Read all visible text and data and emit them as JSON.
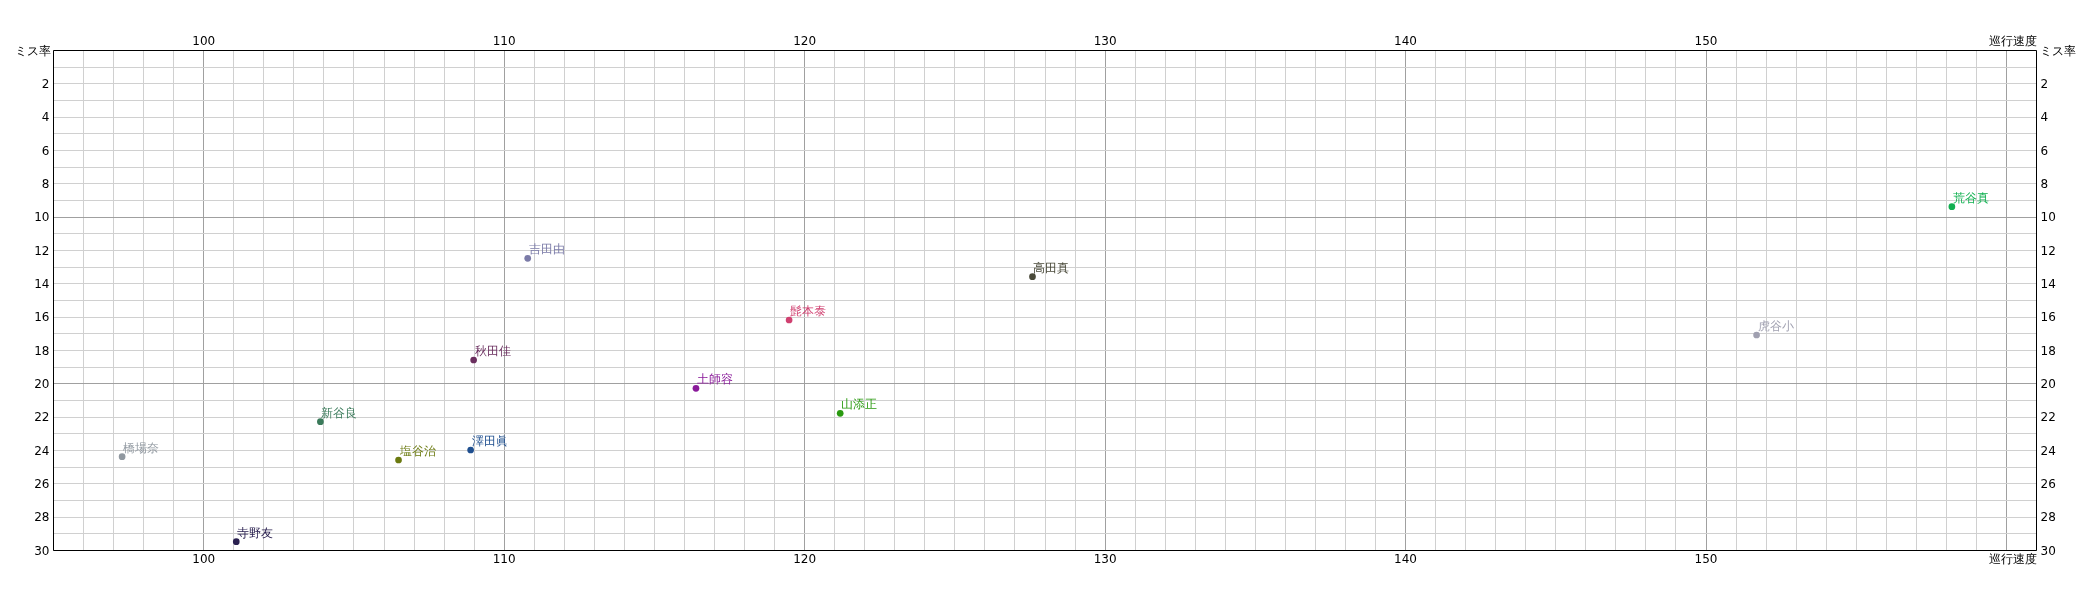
{
  "chart_data": {
    "type": "scatter",
    "xlabel": "巡行速度",
    "x2label": "巡行速度",
    "ylabel": "ミス率",
    "y2label": "ミス率",
    "xlim": [
      95,
      161
    ],
    "x2lim": [
      95,
      161
    ],
    "ylim": [
      30,
      0
    ],
    "y2lim": [
      30,
      0
    ],
    "xticks": [
      {
        "value": 96,
        "label": null
      },
      {
        "value": 97,
        "label": null
      },
      {
        "value": 98,
        "label": null
      },
      {
        "value": 99,
        "label": null
      },
      100,
      {
        "value": 101,
        "label": null
      },
      {
        "value": 102,
        "label": null
      },
      {
        "value": 103,
        "label": null
      },
      {
        "value": 104,
        "label": null
      },
      {
        "value": 105,
        "label": null
      },
      {
        "value": 106,
        "label": null
      },
      {
        "value": 107,
        "label": null
      },
      {
        "value": 108,
        "label": null
      },
      {
        "value": 109,
        "label": null
      },
      110,
      {
        "value": 111,
        "label": null
      },
      {
        "value": 112,
        "label": null
      },
      {
        "value": 113,
        "label": null
      },
      {
        "value": 114,
        "label": null
      },
      {
        "value": 115,
        "label": null
      },
      {
        "value": 116,
        "label": null
      },
      {
        "value": 117,
        "label": null
      },
      {
        "value": 118,
        "label": null
      },
      {
        "value": 119,
        "label": null
      },
      120,
      {
        "value": 121,
        "label": null
      },
      {
        "value": 122,
        "label": null
      },
      {
        "value": 123,
        "label": null
      },
      {
        "value": 124,
        "label": null
      },
      {
        "value": 125,
        "label": null
      },
      {
        "value": 126,
        "label": null
      },
      {
        "value": 127,
        "label": null
      },
      {
        "value": 128,
        "label": null
      },
      {
        "value": 129,
        "label": null
      },
      130,
      {
        "value": 131,
        "label": null
      },
      {
        "value": 132,
        "label": null
      },
      {
        "value": 133,
        "label": null
      },
      {
        "value": 134,
        "label": null
      },
      {
        "value": 135,
        "label": null
      },
      {
        "value": 136,
        "label": null
      },
      {
        "value": 137,
        "label": null
      },
      {
        "value": 138,
        "label": null
      },
      {
        "value": 139,
        "label": null
      },
      140,
      {
        "value": 141,
        "label": null
      },
      {
        "value": 142,
        "label": null
      },
      {
        "value": 143,
        "label": null
      },
      {
        "value": 144,
        "label": null
      },
      {
        "value": 145,
        "label": null
      },
      {
        "value": 146,
        "label": null
      },
      {
        "value": 147,
        "label": null
      },
      {
        "value": 148,
        "label": null
      },
      {
        "value": 149,
        "label": null
      },
      150,
      {
        "value": 151,
        "label": null
      },
      {
        "value": 152,
        "label": null
      },
      {
        "value": 153,
        "label": null
      },
      {
        "value": 154,
        "label": null
      },
      {
        "value": 155,
        "label": null
      },
      {
        "value": 156,
        "label": null
      },
      {
        "value": 157,
        "label": null
      },
      {
        "value": 158,
        "label": null
      },
      {
        "value": 159,
        "label": null
      },
      {
        "value": 160,
        "label": null
      }
    ],
    "x2ticks": [
      {
        "value": 96,
        "label": null
      },
      {
        "value": 97,
        "label": null
      },
      {
        "value": 98,
        "label": null
      },
      {
        "value": 99,
        "label": null
      },
      100,
      {
        "value": 101,
        "label": null
      },
      {
        "value": 102,
        "label": null
      },
      {
        "value": 103,
        "label": null
      },
      {
        "value": 104,
        "label": null
      },
      {
        "value": 105,
        "label": null
      },
      {
        "value": 106,
        "label": null
      },
      {
        "value": 107,
        "label": null
      },
      {
        "value": 108,
        "label": null
      },
      {
        "value": 109,
        "label": null
      },
      110,
      {
        "value": 111,
        "label": null
      },
      {
        "value": 112,
        "label": null
      },
      {
        "value": 113,
        "label": null
      },
      {
        "value": 114,
        "label": null
      },
      {
        "value": 115,
        "label": null
      },
      {
        "value": 116,
        "label": null
      },
      {
        "value": 117,
        "label": null
      },
      {
        "value": 118,
        "label": null
      },
      {
        "value": 119,
        "label": null
      },
      120,
      {
        "value": 121,
        "label": null
      },
      {
        "value": 122,
        "label": null
      },
      {
        "value": 123,
        "label": null
      },
      {
        "value": 124,
        "label": null
      },
      {
        "value": 125,
        "label": null
      },
      {
        "value": 126,
        "label": null
      },
      {
        "value": 127,
        "label": null
      },
      {
        "value": 128,
        "label": null
      },
      {
        "value": 129,
        "label": null
      },
      130,
      {
        "value": 131,
        "label": null
      },
      {
        "value": 132,
        "label": null
      },
      {
        "value": 133,
        "label": null
      },
      {
        "value": 134,
        "label": null
      },
      {
        "value": 135,
        "label": null
      },
      {
        "value": 136,
        "label": null
      },
      {
        "value": 137,
        "label": null
      },
      {
        "value": 138,
        "label": null
      },
      {
        "value": 139,
        "label": null
      },
      140,
      {
        "value": 141,
        "label": null
      },
      {
        "value": 142,
        "label": null
      },
      {
        "value": 143,
        "label": null
      },
      {
        "value": 144,
        "label": null
      },
      {
        "value": 145,
        "label": null
      },
      {
        "value": 146,
        "label": null
      },
      {
        "value": 147,
        "label": null
      },
      {
        "value": 148,
        "label": null
      },
      {
        "value": 149,
        "label": null
      },
      150,
      {
        "value": 151,
        "label": null
      },
      {
        "value": 152,
        "label": null
      },
      {
        "value": 153,
        "label": null
      },
      {
        "value": 154,
        "label": null
      },
      {
        "value": 155,
        "label": null
      },
      {
        "value": 156,
        "label": null
      },
      {
        "value": 157,
        "label": null
      },
      {
        "value": 158,
        "label": null
      },
      {
        "value": 159,
        "label": null
      },
      {
        "value": 160,
        "label": null
      }
    ],
    "yticks": [
      {
        "value": 1,
        "label": null
      },
      2,
      {
        "value": 3,
        "label": null
      },
      4,
      {
        "value": 5,
        "label": null
      },
      6,
      {
        "value": 7,
        "label": null
      },
      8,
      {
        "value": 9,
        "label": null
      },
      10,
      {
        "value": 11,
        "label": null
      },
      12,
      {
        "value": 13,
        "label": null
      },
      14,
      {
        "value": 15,
        "label": null
      },
      16,
      {
        "value": 17,
        "label": null
      },
      18,
      {
        "value": 19,
        "label": null
      },
      20,
      {
        "value": 21,
        "label": null
      },
      22,
      {
        "value": 23,
        "label": null
      },
      24,
      {
        "value": 25,
        "label": null
      },
      26,
      {
        "value": 27,
        "label": null
      },
      28,
      {
        "value": 29,
        "label": null
      },
      30
    ],
    "y2ticks": [
      {
        "value": 1,
        "label": null
      },
      2,
      {
        "value": 3,
        "label": null
      },
      4,
      {
        "value": 5,
        "label": null
      },
      6,
      {
        "value": 7,
        "label": null
      },
      8,
      {
        "value": 9,
        "label": null
      },
      10,
      {
        "value": 11,
        "label": null
      },
      12,
      {
        "value": 13,
        "label": null
      },
      14,
      {
        "value": 15,
        "label": null
      },
      16,
      {
        "value": 17,
        "label": null
      },
      18,
      {
        "value": 19,
        "label": null
      },
      20,
      {
        "value": 21,
        "label": null
      },
      22,
      {
        "value": 23,
        "label": null
      },
      24,
      {
        "value": 25,
        "label": null
      },
      26,
      {
        "value": 27,
        "label": null
      },
      28,
      {
        "value": 29,
        "label": null
      },
      30
    ],
    "grid": true,
    "marker": "circle",
    "series": [
      {
        "name": "吉田由",
        "color": "#7b7ba8",
        "x": [
          110.8
        ],
        "values": [
          12.5
        ]
      },
      {
        "name": "秋田佳",
        "color": "#6b2f5f",
        "x": [
          109.0
        ],
        "values": [
          18.6
        ]
      },
      {
        "name": "新谷良",
        "color": "#3a7a5a",
        "x": [
          103.9
        ],
        "values": [
          22.3
        ]
      },
      {
        "name": "橋場奈",
        "color": "#9098a0",
        "x": [
          97.3
        ],
        "values": [
          24.4
        ]
      },
      {
        "name": "塩谷治",
        "color": "#6b7a10",
        "x": [
          106.5
        ],
        "values": [
          24.6
        ]
      },
      {
        "name": "澤田眞",
        "color": "#1f4f8f",
        "x": [
          108.9
        ],
        "values": [
          24.0
        ]
      },
      {
        "name": "寺野友",
        "color": "#2a2050",
        "x": [
          101.1
        ],
        "values": [
          29.5
        ]
      },
      {
        "name": "土師容",
        "color": "#8a1a9a",
        "x": [
          116.4
        ],
        "values": [
          20.3
        ]
      },
      {
        "name": "髭本泰",
        "color": "#d04070",
        "x": [
          119.5
        ],
        "values": [
          16.2
        ]
      },
      {
        "name": "高田真",
        "color": "#4a4a3a",
        "x": [
          127.6
        ],
        "values": [
          13.6
        ]
      },
      {
        "name": "山添正",
        "color": "#2a9a10",
        "x": [
          121.2
        ],
        "values": [
          21.8
        ]
      },
      {
        "name": "荒谷真",
        "color": "#10b050",
        "x": [
          158.2
        ],
        "values": [
          9.4
        ]
      },
      {
        "name": "虎谷小",
        "color": "#a0a0b0",
        "x": [
          151.7
        ],
        "values": [
          17.1
        ]
      }
    ]
  }
}
